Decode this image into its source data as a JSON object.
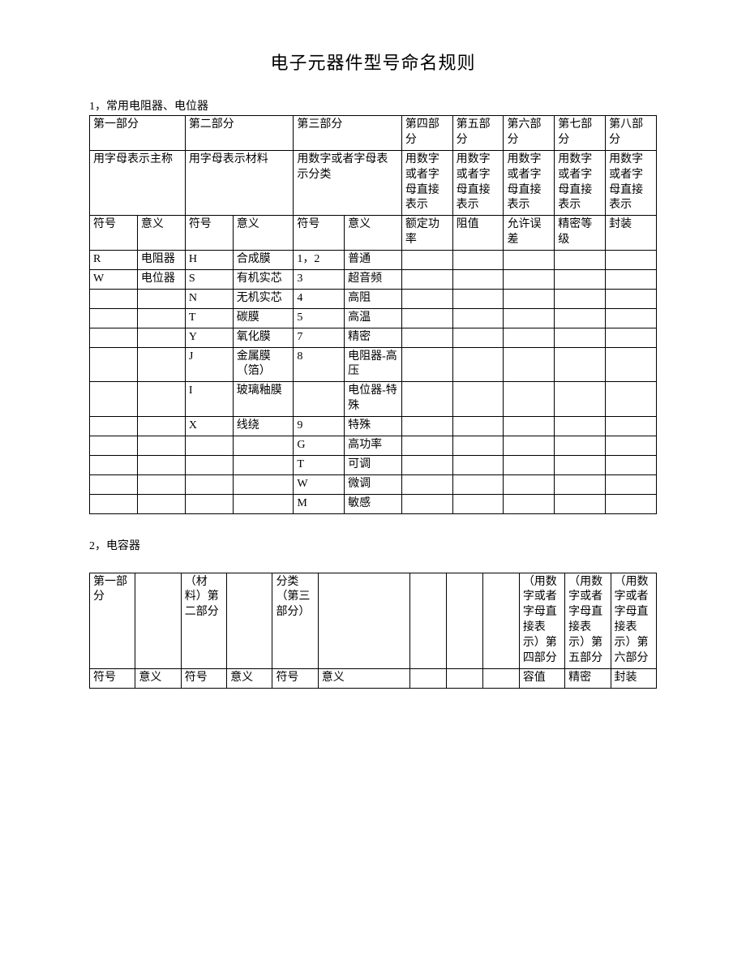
{
  "title": "电子元器件型号命名规则",
  "section1": {
    "label": "1，常用电阻器、电位器",
    "header_row1": [
      "第一部分",
      "第二部分",
      "第三部分",
      "第四部分",
      "第五部分",
      "第六部分",
      "第七部分",
      "第八部分"
    ],
    "header_row2": [
      "用字母表示主称",
      "用字母表示材料",
      "用数字或者字母表示分类",
      "用数字或者字母直接表示",
      "用数字或者字母直接表示",
      "用数字或者字母直接表示",
      "用数字或者字母直接表示",
      "用数字或者字母直接表示"
    ],
    "header_row3": [
      "符号",
      "意义",
      "符号",
      "意义",
      "符号",
      "意义",
      "额定功率",
      "阻值",
      "允许误差",
      "精密等级",
      "封装"
    ],
    "rows": [
      [
        "R",
        "电阻器",
        "H",
        "合成膜",
        "1，2",
        "普通",
        "",
        "",
        "",
        "",
        ""
      ],
      [
        "W",
        "电位器",
        "S",
        "有机实芯",
        "3",
        "超音频",
        "",
        "",
        "",
        "",
        ""
      ],
      [
        "",
        "",
        "N",
        "无机实芯",
        "4",
        "高阻",
        "",
        "",
        "",
        "",
        ""
      ],
      [
        "",
        "",
        "T",
        "碳膜",
        "5",
        "高温",
        "",
        "",
        "",
        "",
        ""
      ],
      [
        "",
        "",
        "Y",
        "氧化膜",
        "7",
        "精密",
        "",
        "",
        "",
        "",
        ""
      ],
      [
        "",
        "",
        "J",
        "金属膜（箔）",
        "8",
        "电阻器-高压",
        "",
        "",
        "",
        "",
        ""
      ],
      [
        "",
        "",
        "I",
        "玻璃釉膜",
        "",
        "电位器-特殊",
        "",
        "",
        "",
        "",
        ""
      ],
      [
        "",
        "",
        "X",
        "线绕",
        "9",
        "特殊",
        "",
        "",
        "",
        "",
        ""
      ],
      [
        "",
        "",
        "",
        "",
        "G",
        "高功率",
        "",
        "",
        "",
        "",
        ""
      ],
      [
        "",
        "",
        "",
        "",
        "T",
        "可调",
        "",
        "",
        "",
        "",
        ""
      ],
      [
        "",
        "",
        "",
        "",
        "W",
        "微调",
        "",
        "",
        "",
        "",
        ""
      ],
      [
        "",
        "",
        "",
        "",
        "M",
        "敏感",
        "",
        "",
        "",
        "",
        ""
      ]
    ]
  },
  "section2": {
    "label": "2，电容器",
    "header_row1": [
      "第一部分",
      "",
      "（材料）第二部分",
      "",
      "分类（第三部分）",
      "",
      "",
      "",
      "",
      "（用数字或者字母直接表示）第四部分",
      "（用数字或者字母直接表示）第五部分",
      "（用数字或者字母直接表示）第六部分"
    ],
    "header_row2": [
      "符号",
      "意义",
      "符号",
      "意义",
      "符号",
      "意义",
      "",
      "",
      "",
      "容值",
      "精密",
      "封装"
    ]
  }
}
